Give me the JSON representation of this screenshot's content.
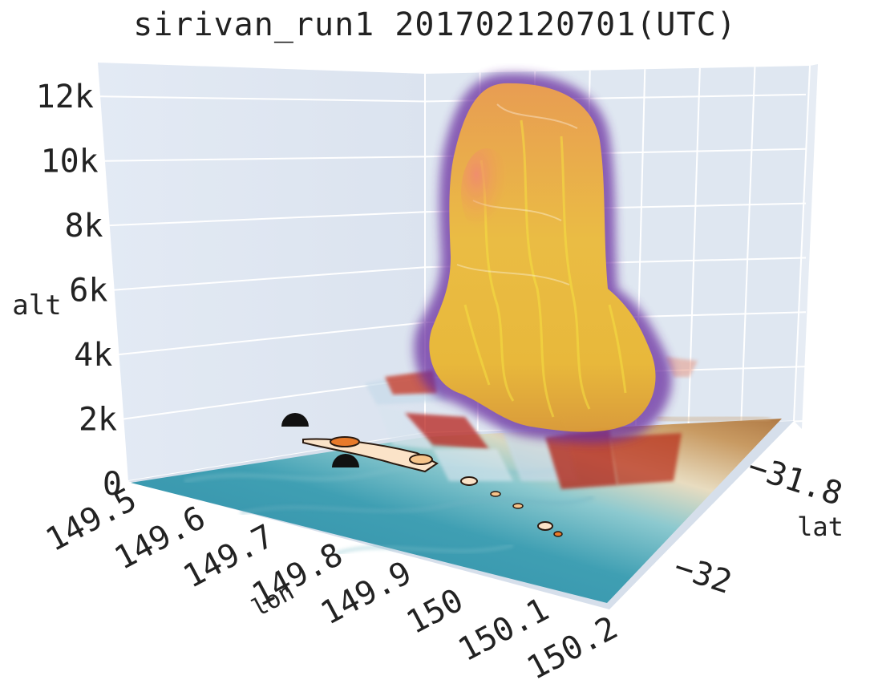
{
  "chart_data": {
    "type": "surface3d",
    "title": "sirivan_run1 201702120701(UTC)",
    "x_axis": {
      "label": "lon",
      "ticks": [
        "149.5",
        "149.6",
        "149.7",
        "149.8",
        "149.9",
        "150",
        "150.1",
        "150.2"
      ],
      "range": [
        149.5,
        150.2
      ]
    },
    "y_axis": {
      "label": "lat",
      "ticks": [
        "-31.8",
        "-32"
      ],
      "range": [
        -32.1,
        -31.7
      ]
    },
    "z_axis": {
      "label": "alt",
      "ticks": [
        "0",
        "2k",
        "4k",
        "6k",
        "8k",
        "10k",
        "12k"
      ],
      "range": [
        0,
        13000
      ]
    },
    "grid": true,
    "layers": [
      {
        "name": "terrain",
        "kind": "surface",
        "colors": [
          "#2f8aa6",
          "#8cc9cf",
          "#e8dcc0",
          "#b07a45"
        ]
      },
      {
        "name": "fire front",
        "kind": "contour",
        "colors": [
          "#fde2c2",
          "#e87a2a"
        ]
      },
      {
        "name": "heat flux",
        "kind": "isosurface",
        "colors": [
          "#b9d3e8",
          "#b8241c"
        ]
      },
      {
        "name": "smoke plume",
        "kind": "isosurface",
        "colors": [
          "#6a2fa0",
          "#e89a2a",
          "#f2d22a",
          "#f0b070"
        ]
      },
      {
        "name": "towns",
        "kind": "markers",
        "color": "#111111"
      }
    ]
  }
}
